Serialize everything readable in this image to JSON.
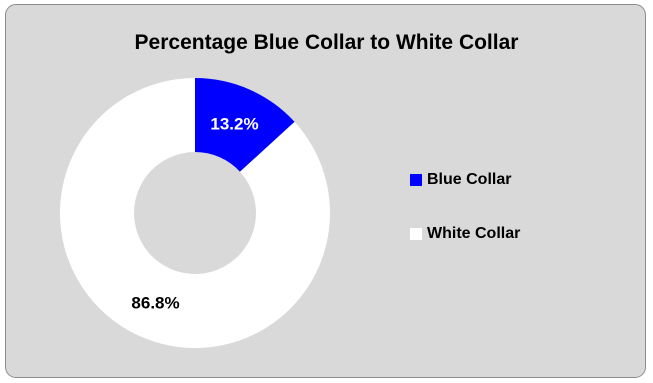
{
  "chart_data": {
    "type": "pie",
    "title": "Percentage Blue Collar to White Collar",
    "categories": [
      "Blue Collar",
      "White Collar"
    ],
    "values": [
      13.2,
      86.8
    ],
    "data_labels": [
      "13.2%",
      "86.8%"
    ],
    "colors": [
      "#0000ff",
      "#ffffff"
    ],
    "donut": true,
    "legend_position": "right"
  }
}
